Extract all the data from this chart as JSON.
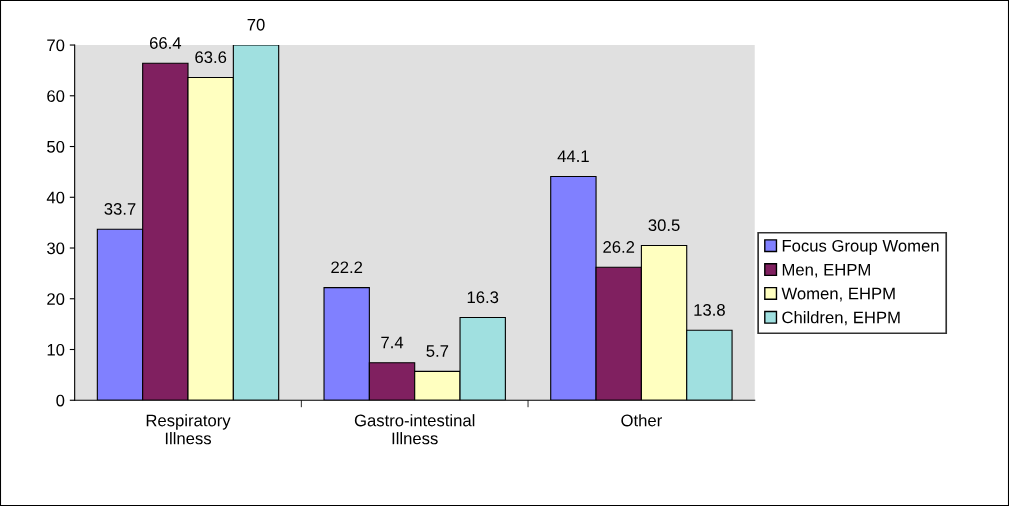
{
  "chart_data": {
    "type": "bar",
    "categories": [
      "Respiratory Illness",
      "Gastro-intestinal Illness",
      "Other"
    ],
    "series": [
      {
        "name": "Focus Group Women",
        "color": "#8080ff",
        "values": [
          33.7,
          22.2,
          44.1
        ]
      },
      {
        "name": "Men, EHPM",
        "color": "#802060",
        "values": [
          66.4,
          7.4,
          26.2
        ]
      },
      {
        "name": "Women, EHPM",
        "color": "#ffffc0",
        "values": [
          63.6,
          5.7,
          30.5
        ]
      },
      {
        "name": "Children, EHPM",
        "color": "#a0e0e0",
        "values": [
          70,
          16.3,
          13.8
        ]
      }
    ],
    "ylim": [
      0,
      70
    ],
    "yticks": [
      0,
      10,
      20,
      30,
      40,
      50,
      60,
      70
    ],
    "data_labels": true,
    "legend": "right",
    "grid": false
  }
}
